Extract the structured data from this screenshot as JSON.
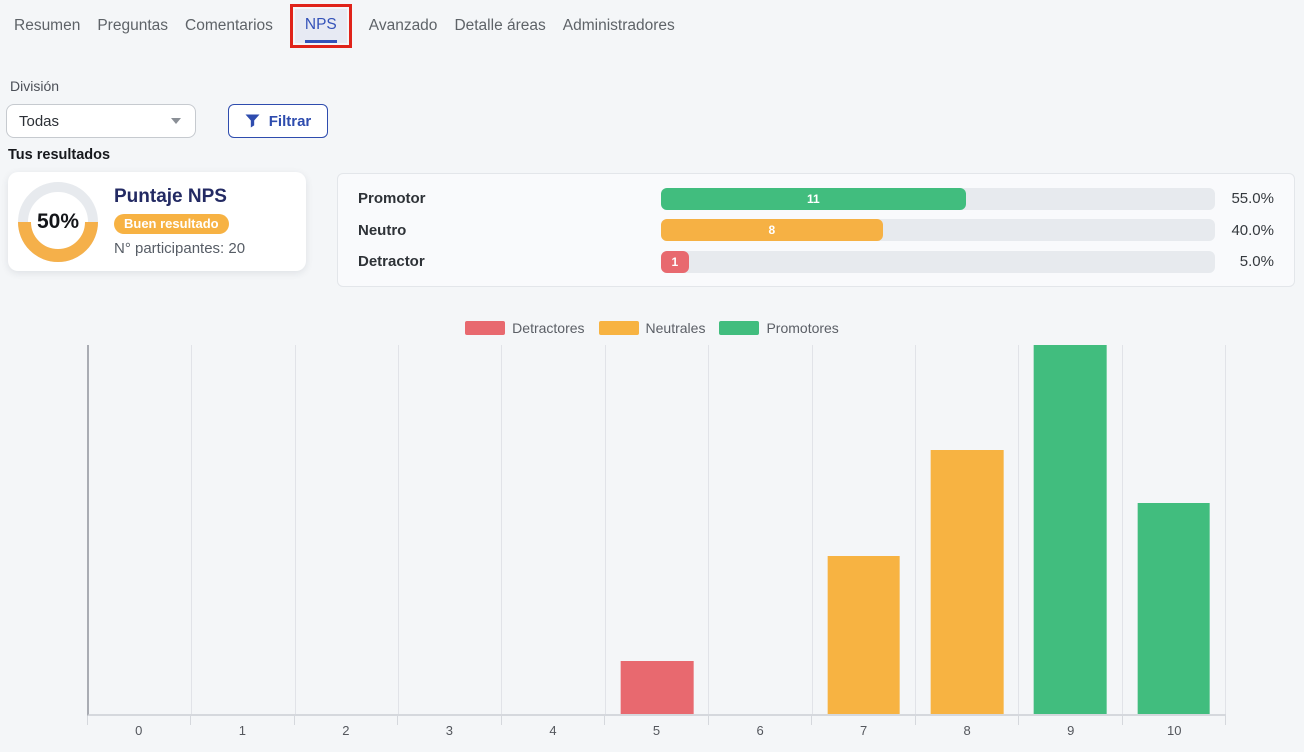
{
  "tabs": {
    "items": [
      {
        "label": "Resumen",
        "active": false
      },
      {
        "label": "Preguntas",
        "active": false
      },
      {
        "label": "Comentarios",
        "active": false
      },
      {
        "label": "NPS",
        "active": true
      },
      {
        "label": "Avanzado",
        "active": false
      },
      {
        "label": "Detalle áreas",
        "active": false
      },
      {
        "label": "Administradores",
        "active": false
      }
    ]
  },
  "filters": {
    "division_label": "División",
    "division_value": "Todas",
    "filter_button_label": "Filtrar",
    "filter_icon": "funnel-icon",
    "select_icon": "chevron-down-icon"
  },
  "results": {
    "section_title": "Tus resultados",
    "score_card": {
      "score": "50%",
      "title": "Puntaje NPS",
      "badge": "Buen resultado",
      "participants": "N° participantes: 20"
    }
  },
  "breakdown": {
    "rows": [
      {
        "label": "Promotor",
        "count": "11",
        "percent": 55,
        "percent_label": "55.0%",
        "color": "#41bd7e"
      },
      {
        "label": "Neutro",
        "count": "8",
        "percent": 40,
        "percent_label": "40.0%",
        "color": "#f6b144"
      },
      {
        "label": "Detractor",
        "count": "1",
        "percent": 5,
        "percent_label": "5.0%",
        "color": "#e8696f"
      }
    ]
  },
  "chart_data": {
    "type": "bar",
    "title": "",
    "xlabel": "",
    "ylabel": "",
    "categories": [
      "0",
      "1",
      "2",
      "3",
      "4",
      "5",
      "6",
      "7",
      "8",
      "9",
      "10"
    ],
    "values": [
      0,
      0,
      0,
      0,
      0,
      1,
      0,
      3,
      5,
      7,
      4
    ],
    "groups": [
      null,
      null,
      null,
      null,
      null,
      "detractor",
      null,
      "neutral",
      "neutral",
      "promoter",
      "promoter"
    ],
    "group_colors": {
      "detractor": "#e8696f",
      "neutral": "#f7b342",
      "promoter": "#41bd7e"
    },
    "ylim": [
      0,
      7
    ],
    "grid": "vertical lines at category boundaries, no y-axis labels",
    "legend_position": "top-center",
    "legend": [
      {
        "label": "Detractores",
        "color": "#e8696f"
      },
      {
        "label": "Neutrales",
        "color": "#f7b342"
      },
      {
        "label": "Promotores",
        "color": "#41bd7e"
      }
    ]
  },
  "colors": {
    "accent_blue": "#2e4cae",
    "tab_blue": "#3452b9",
    "annotation_red": "#e0231a",
    "navy": "#232a63",
    "badge_orange": "#f7b243",
    "donut_orange": "#f5b04a",
    "donut_track": "#e7eaee",
    "track_gray": "#e7eaee",
    "page_background": "#f4f6f8"
  }
}
